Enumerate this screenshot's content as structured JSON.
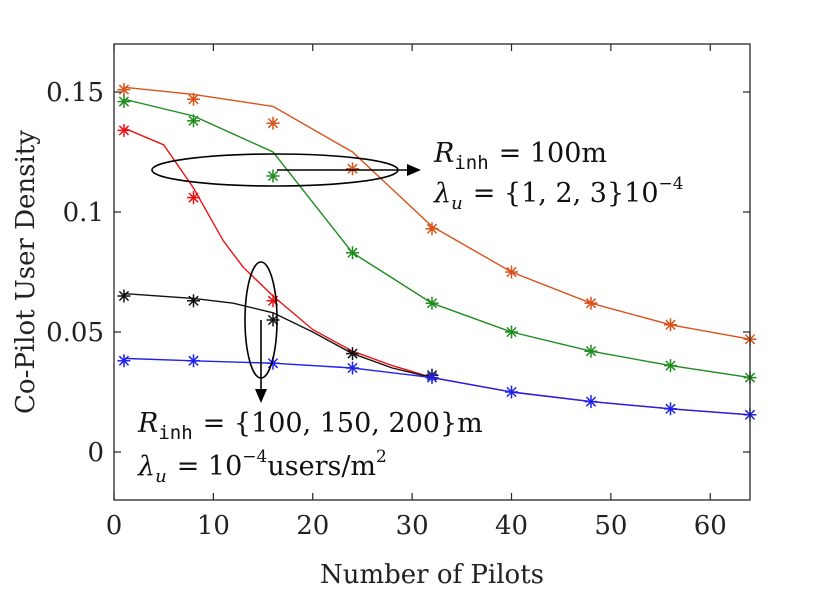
{
  "chart_data": {
    "type": "line",
    "title": "",
    "xlabel": "Number of Pilots",
    "ylabel": "Co-Pilot User Density",
    "xlim": [
      0,
      64
    ],
    "ylim": [
      -0.02,
      0.17
    ],
    "xticks": [
      0,
      10,
      20,
      30,
      40,
      50,
      60
    ],
    "xtick_labels": [
      "0",
      "10",
      "20",
      "30",
      "40",
      "50",
      "60"
    ],
    "yticks": [
      0,
      0.05,
      0.1,
      0.15
    ],
    "ytick_labels": [
      "0",
      "0.05",
      "0.1",
      "0.15"
    ],
    "grid": false,
    "series": [
      {
        "name": "R_inh = 100m, λu = 3·10^-4",
        "color": "#d95319",
        "line": {
          "x": [
            1,
            8,
            16,
            24,
            32,
            40,
            48,
            56,
            64
          ],
          "y": [
            0.152,
            0.149,
            0.144,
            0.125,
            0.094,
            0.075,
            0.062,
            0.053,
            0.047
          ]
        },
        "markers": {
          "x": [
            1,
            8,
            16,
            24,
            32,
            40,
            48,
            56,
            64
          ],
          "y": [
            0.151,
            0.147,
            0.137,
            0.118,
            0.093,
            0.075,
            0.062,
            0.053,
            0.047
          ]
        }
      },
      {
        "name": "R_inh = 100m, λu = 2·10^-4",
        "color": "#1e8c1e",
        "line": {
          "x": [
            1,
            8,
            16,
            24,
            32,
            40,
            48,
            56,
            64
          ],
          "y": [
            0.147,
            0.14,
            0.125,
            0.083,
            0.062,
            0.05,
            0.042,
            0.036,
            0.031
          ]
        },
        "markers": {
          "x": [
            1,
            8,
            16,
            24,
            32,
            40,
            48,
            56,
            64
          ],
          "y": [
            0.146,
            0.138,
            0.115,
            0.083,
            0.062,
            0.05,
            0.042,
            0.036,
            0.031
          ]
        }
      },
      {
        "name": "R_inh = 100m, λu = 1·10^-4",
        "color": "#ee1111",
        "line": {
          "x": [
            1,
            5,
            8,
            11,
            13,
            16,
            20,
            24,
            28,
            32,
            40,
            48,
            56,
            64
          ],
          "y": [
            0.135,
            0.128,
            0.11,
            0.088,
            0.077,
            0.065,
            0.051,
            0.042,
            0.036,
            0.031,
            0.025,
            0.021,
            0.018,
            0.0155
          ]
        },
        "markers": {
          "x": [
            1,
            8,
            16
          ],
          "y": [
            0.134,
            0.106,
            0.063
          ]
        }
      },
      {
        "name": "R_inh = 150m, λu = 10^-4",
        "color": "#111111",
        "line": {
          "x": [
            1,
            8,
            12,
            16,
            20,
            24,
            28,
            32
          ],
          "y": [
            0.066,
            0.064,
            0.062,
            0.058,
            0.05,
            0.041,
            0.035,
            0.031
          ]
        },
        "markers": {
          "x": [
            1,
            8,
            16,
            24,
            32
          ],
          "y": [
            0.065,
            0.063,
            0.055,
            0.041,
            0.032
          ]
        }
      },
      {
        "name": "R_inh = 200m, λu = 10^-4",
        "color": "#1f22ee",
        "line": {
          "x": [
            1,
            8,
            16,
            24,
            32,
            40,
            48,
            56,
            64
          ],
          "y": [
            0.039,
            0.038,
            0.037,
            0.035,
            0.031,
            0.025,
            0.021,
            0.018,
            0.0155
          ]
        },
        "markers": {
          "x": [
            1,
            8,
            16,
            24,
            32,
            40,
            48,
            56,
            64
          ],
          "y": [
            0.038,
            0.038,
            0.037,
            0.035,
            0.031,
            0.025,
            0.021,
            0.018,
            0.0155
          ]
        }
      }
    ],
    "annotations": {
      "top": {
        "r_symbol": "R",
        "r_subscript": "inh",
        "r_value": "= 100m",
        "lambda_symbol": "λ",
        "lambda_subscript": "u",
        "lambda_value": "= {1, 2, 3}10",
        "lambda_exponent": "−4"
      },
      "bottom": {
        "r_symbol": "R",
        "r_subscript": "inh",
        "r_value": "= {100, 150, 200}m",
        "lambda_symbol": "λ",
        "lambda_subscript": "u",
        "lambda_value": "= 10",
        "lambda_exponent": "−4",
        "lambda_unit": "users/m",
        "lambda_unit_exponent": "2"
      }
    }
  }
}
